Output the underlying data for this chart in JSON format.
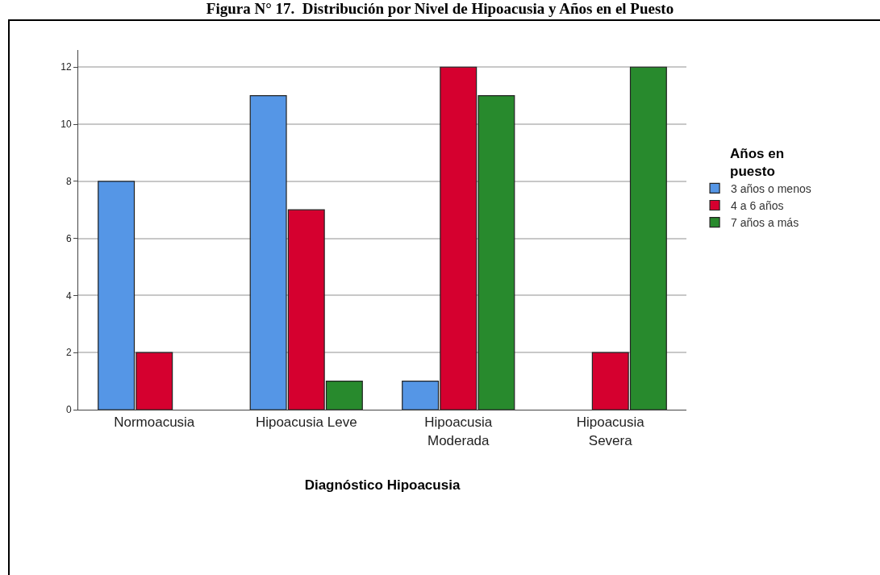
{
  "chart_data": {
    "type": "bar",
    "title": "Figura N° 17.  Distribución por Nivel de Hipoacusia y Años en el Puesto",
    "xlabel": "Diagnóstico Hipoacusia",
    "legend_title": "Años en\npuesto",
    "categories": [
      "Normoacusia",
      "Hipoacusia Leve",
      "Hipoacusia\nModerada",
      "Hipoacusia\nSevera"
    ],
    "series": [
      {
        "name": "3 años o menos",
        "color": "#5596e6",
        "values": [
          8,
          11,
          1,
          null
        ]
      },
      {
        "name": "4 a 6 años",
        "color": "#d5002f",
        "values": [
          2,
          7,
          12,
          2
        ]
      },
      {
        "name": "7 años a más",
        "color": "#288a2d",
        "values": [
          null,
          1,
          11,
          12
        ]
      }
    ],
    "ylim": [
      0,
      12.6
    ],
    "yticks": [
      0,
      2,
      4,
      6,
      8,
      10,
      12
    ],
    "grid": "y",
    "legend": "right"
  }
}
